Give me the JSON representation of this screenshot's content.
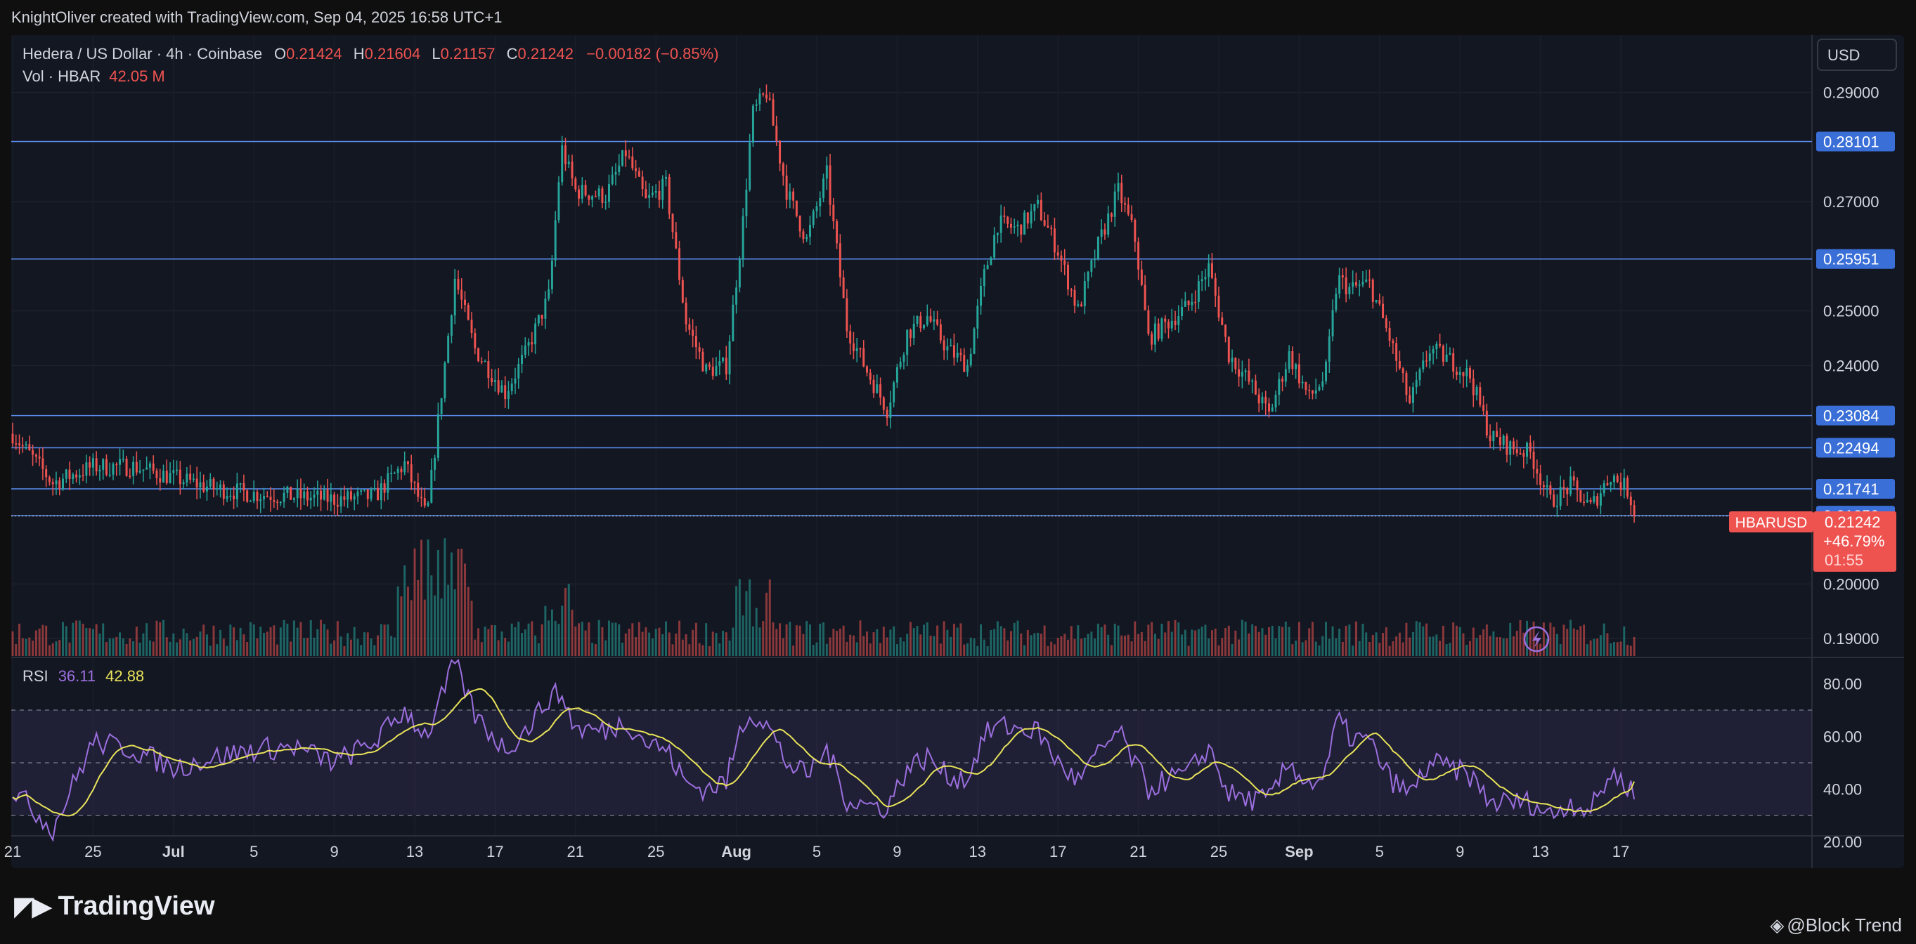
{
  "header": {
    "credit": "KnightOliver created with TradingView.com, Sep 04, 2025 16:58 UTC+1"
  },
  "legend": {
    "symbol": "Hedera / US Dollar · 4h · Coinbase",
    "o_label": "O",
    "o_value": "0.21424",
    "h_label": "H",
    "h_value": "0.21604",
    "l_label": "L",
    "l_value": "0.21157",
    "c_label": "C",
    "c_value": "0.21242",
    "change": "−0.00182 (−0.85%)",
    "vol_label": "Vol · HBAR",
    "vol_value": "42.05 M"
  },
  "currency_button": "USD",
  "rsi_legend": {
    "label": "RSI",
    "rsi_value": "36.11",
    "ma_value": "42.88"
  },
  "price_tag": {
    "symbol": "HBARUSD",
    "price": "0.21242",
    "change": "+46.79%",
    "countdown": "01:55"
  },
  "logo": {
    "text": "TradingView"
  },
  "watermark": {
    "text": "@Block Trend"
  },
  "colors": {
    "background": "#131722",
    "up": "#26a69a",
    "down": "#ef5350",
    "level_line": "#5b8def",
    "rsi_line": "#9c6fde",
    "rsi_ma": "#e8e35a",
    "text": "#d1d4dc"
  },
  "chart_data": {
    "type": "candlestick",
    "title": "Hedera / US Dollar · 4h · Coinbase",
    "price_axis": {
      "ticks": [
        "0.29000",
        "0.27000",
        "0.25000",
        "0.24000",
        "0.20000",
        "0.19000"
      ],
      "tick_values": [
        0.29,
        0.27,
        0.25,
        0.24,
        0.2,
        0.19
      ],
      "range": [
        0.1868,
        0.3005
      ]
    },
    "horizontal_levels": [
      {
        "label": "0.28101",
        "value": 0.28101
      },
      {
        "label": "0.25951",
        "value": 0.25951
      },
      {
        "label": "0.23084",
        "value": 0.23084
      },
      {
        "label": "0.22494",
        "value": 0.22494
      },
      {
        "label": "0.21741",
        "value": 0.21741
      },
      {
        "label": "0.21250",
        "value": 0.2125
      }
    ],
    "current_price": 0.21242,
    "time_axis": {
      "labels": [
        "21",
        "25",
        "Jul",
        "5",
        "9",
        "13",
        "17",
        "21",
        "25",
        "Aug",
        "5",
        "9",
        "13",
        "17",
        "21",
        "25",
        "Sep",
        "5",
        "9",
        "13",
        "17"
      ],
      "bold": [
        "Jul",
        "Aug",
        "Sep"
      ]
    },
    "rsi": {
      "range": [
        10,
        90
      ],
      "ticks": [
        "80.00",
        "60.00",
        "40.00",
        "20.00"
      ],
      "tick_values": [
        80,
        60,
        40,
        20
      ],
      "band": [
        30,
        70
      ],
      "midline": 50,
      "rsi_last": 36.11,
      "ma_last": 42.88
    },
    "keyframes": [
      {
        "day": 0,
        "c": 0.2275,
        "rsi": 40
      },
      {
        "day": 2,
        "c": 0.2185,
        "rsi": 25
      },
      {
        "day": 4,
        "c": 0.2215,
        "rsi": 58
      },
      {
        "day": 6,
        "c": 0.2215,
        "rsi": 55
      },
      {
        "day": 8,
        "c": 0.2195,
        "rsi": 48
      },
      {
        "day": 10,
        "c": 0.2175,
        "rsi": 52
      },
      {
        "day": 12,
        "c": 0.2165,
        "rsi": 55
      },
      {
        "day": 14,
        "c": 0.216,
        "rsi": 56
      },
      {
        "day": 16,
        "c": 0.2155,
        "rsi": 50
      },
      {
        "day": 18,
        "c": 0.216,
        "rsi": 58
      },
      {
        "day": 19.5,
        "c": 0.222,
        "rsi": 70
      },
      {
        "day": 20.6,
        "c": 0.212,
        "rsi": 60
      },
      {
        "day": 22,
        "c": 0.256,
        "rsi": 88
      },
      {
        "day": 23,
        "c": 0.243,
        "rsi": 68
      },
      {
        "day": 24.5,
        "c": 0.235,
        "rsi": 55
      },
      {
        "day": 25.5,
        "c": 0.242,
        "rsi": 62
      },
      {
        "day": 26.7,
        "c": 0.253,
        "rsi": 75
      },
      {
        "day": 27.3,
        "c": 0.28,
        "rsi": 76
      },
      {
        "day": 28,
        "c": 0.272,
        "rsi": 63
      },
      {
        "day": 29.5,
        "c": 0.271,
        "rsi": 62
      },
      {
        "day": 30.5,
        "c": 0.279,
        "rsi": 66
      },
      {
        "day": 31.5,
        "c": 0.27,
        "rsi": 58
      },
      {
        "day": 32.5,
        "c": 0.273,
        "rsi": 55
      },
      {
        "day": 33.5,
        "c": 0.248,
        "rsi": 42
      },
      {
        "day": 34.5,
        "c": 0.239,
        "rsi": 40
      },
      {
        "day": 35.5,
        "c": 0.24,
        "rsi": 43
      },
      {
        "day": 36.3,
        "c": 0.265,
        "rsi": 65
      },
      {
        "day": 36.8,
        "c": 0.286,
        "rsi": 69
      },
      {
        "day": 37.5,
        "c": 0.29,
        "rsi": 65
      },
      {
        "day": 38.5,
        "c": 0.272,
        "rsi": 50
      },
      {
        "day": 39.5,
        "c": 0.263,
        "rsi": 45
      },
      {
        "day": 40.5,
        "c": 0.275,
        "rsi": 55
      },
      {
        "day": 41.5,
        "c": 0.247,
        "rsi": 36
      },
      {
        "day": 42.5,
        "c": 0.239,
        "rsi": 34
      },
      {
        "day": 43.5,
        "c": 0.232,
        "rsi": 33
      },
      {
        "day": 44.5,
        "c": 0.246,
        "rsi": 48
      },
      {
        "day": 45.5,
        "c": 0.249,
        "rsi": 52
      },
      {
        "day": 46.5,
        "c": 0.243,
        "rsi": 45
      },
      {
        "day": 47.5,
        "c": 0.24,
        "rsi": 44
      },
      {
        "day": 48.3,
        "c": 0.256,
        "rsi": 60
      },
      {
        "day": 49,
        "c": 0.266,
        "rsi": 64
      },
      {
        "day": 50,
        "c": 0.265,
        "rsi": 63
      },
      {
        "day": 51,
        "c": 0.269,
        "rsi": 62
      },
      {
        "day": 52,
        "c": 0.261,
        "rsi": 50
      },
      {
        "day": 53,
        "c": 0.25,
        "rsi": 43
      },
      {
        "day": 54,
        "c": 0.262,
        "rsi": 53
      },
      {
        "day": 55,
        "c": 0.272,
        "rsi": 62
      },
      {
        "day": 55.8,
        "c": 0.264,
        "rsi": 50
      },
      {
        "day": 56.5,
        "c": 0.245,
        "rsi": 40
      },
      {
        "day": 57.5,
        "c": 0.248,
        "rsi": 44
      },
      {
        "day": 58.5,
        "c": 0.251,
        "rsi": 46
      },
      {
        "day": 59.5,
        "c": 0.258,
        "rsi": 56
      },
      {
        "day": 60.5,
        "c": 0.242,
        "rsi": 38
      },
      {
        "day": 61.5,
        "c": 0.237,
        "rsi": 36
      },
      {
        "day": 62.5,
        "c": 0.231,
        "rsi": 36
      },
      {
        "day": 63.5,
        "c": 0.242,
        "rsi": 50
      },
      {
        "day": 64.5,
        "c": 0.234,
        "rsi": 42
      },
      {
        "day": 65.3,
        "c": 0.238,
        "rsi": 45
      },
      {
        "day": 65.9,
        "c": 0.256,
        "rsi": 67
      },
      {
        "day": 66.5,
        "c": 0.254,
        "rsi": 60
      },
      {
        "day": 67.5,
        "c": 0.255,
        "rsi": 58
      },
      {
        "day": 68.5,
        "c": 0.245,
        "rsi": 44
      },
      {
        "day": 69.5,
        "c": 0.233,
        "rsi": 38
      },
      {
        "day": 70.5,
        "c": 0.243,
        "rsi": 50
      },
      {
        "day": 71.5,
        "c": 0.241,
        "rsi": 48
      },
      {
        "day": 72.5,
        "c": 0.238,
        "rsi": 45
      },
      {
        "day": 73.5,
        "c": 0.227,
        "rsi": 35
      },
      {
        "day": 74.5,
        "c": 0.225,
        "rsi": 35
      },
      {
        "day": 75.5,
        "c": 0.224,
        "rsi": 35
      },
      {
        "day": 76.5,
        "c": 0.215,
        "rsi": 30
      },
      {
        "day": 77.5,
        "c": 0.218,
        "rsi": 35
      },
      {
        "day": 78.5,
        "c": 0.214,
        "rsi": 32
      },
      {
        "day": 79.5,
        "c": 0.22,
        "rsi": 46
      },
      {
        "day": 80.3,
        "c": 0.2175,
        "rsi": 42
      },
      {
        "day": 80.8,
        "c": 0.2124,
        "rsi": 36
      }
    ]
  }
}
